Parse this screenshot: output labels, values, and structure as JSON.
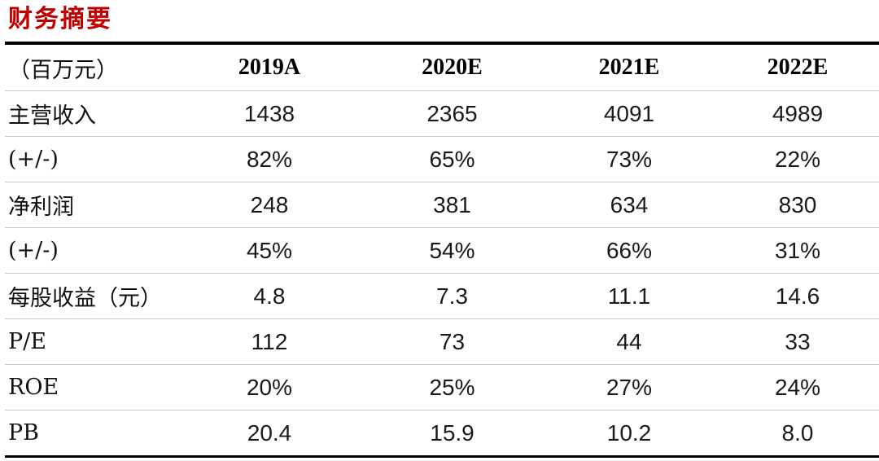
{
  "title": "财务摘要",
  "colors": {
    "title_red": "#c00000",
    "heavy_rule": "#000000",
    "light_rule": "#c8c8c8",
    "text": "#111111"
  },
  "table": {
    "header": [
      "（百万元）",
      "2019A",
      "2020E",
      "2021E",
      "2022E"
    ],
    "rows": [
      {
        "label": "主营收入",
        "values": [
          "1438",
          "2365",
          "4091",
          "4989"
        ]
      },
      {
        "label": "(+/-)",
        "values": [
          "82%",
          "65%",
          "73%",
          "22%"
        ]
      },
      {
        "label": "净利润",
        "values": [
          "248",
          "381",
          "634",
          "830"
        ]
      },
      {
        "label": "(+/-)",
        "values": [
          "45%",
          "54%",
          "66%",
          "31%"
        ]
      },
      {
        "label": "每股收益（元）",
        "values": [
          "4.8",
          "7.3",
          "11.1",
          "14.6"
        ]
      },
      {
        "label": "P/E",
        "values": [
          "112",
          "73",
          "44",
          "33"
        ]
      },
      {
        "label": "ROE",
        "values": [
          "20%",
          "25%",
          "27%",
          "24%"
        ]
      },
      {
        "label": "PB",
        "values": [
          "20.4",
          "15.9",
          "10.2",
          "8.0"
        ]
      }
    ]
  }
}
